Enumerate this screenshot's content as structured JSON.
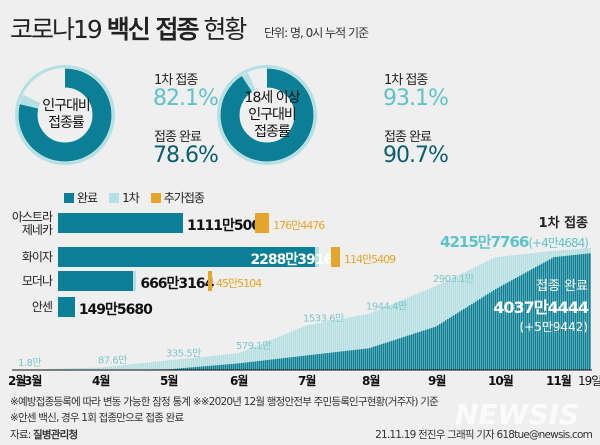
{
  "title": {
    "light": "코로나19 ",
    "bold": "백신 접종",
    "tail": " 현황"
  },
  "unit": "단위: 명, 0시 누적 기준",
  "donuts": [
    {
      "center": [
        "인구대비",
        "접종률"
      ],
      "first_label": "1차 접종",
      "first_pct": "82.1%",
      "full_label": "접종 완료",
      "full_pct": "78.6%",
      "first_value": 82.1,
      "full_value": 78.6
    },
    {
      "center": [
        "18세 이상",
        "인구대비",
        "접종률"
      ],
      "first_label": "1차 접종",
      "first_pct": "93.1%",
      "full_label": "접종 완료",
      "full_pct": "90.7%",
      "first_value": 93.1,
      "full_value": 90.7
    }
  ],
  "legend": [
    {
      "label": "완료",
      "color": "#0a7f96"
    },
    {
      "label": "1차",
      "color": "#b4e0e3"
    },
    {
      "label": "추가접종",
      "color": "#e5a52a"
    }
  ],
  "vaccines": [
    {
      "name": [
        "아스트라",
        "제네카"
      ],
      "complete": 1111.5006,
      "first_extra": 0,
      "complete_label": "1111만5006",
      "booster": 176.4476,
      "booster_label": "176만4476"
    },
    {
      "name": [
        "화이자"
      ],
      "complete": 2288.3916,
      "first_extra": 30,
      "complete_label": "2288만3916",
      "booster": 114.5409,
      "booster_label": "114만5409"
    },
    {
      "name": [
        "모더나"
      ],
      "complete": 666.3164,
      "first_extra": 30,
      "complete_label": "666만3164",
      "booster": 45.5104,
      "booster_label": "45만5104"
    },
    {
      "name": [
        "안센"
      ],
      "complete": 149.568,
      "first_extra": 0,
      "complete_label": "149만5680",
      "booster": 0,
      "booster_label": ""
    }
  ],
  "summary": {
    "first_label": "1차 접종",
    "first_total": "4215만7766",
    "first_delta": "(+4만4684)",
    "full_label": "접종 완료",
    "full_total": "4037만4444",
    "full_delta": "(+5만9442)"
  },
  "chart_data": {
    "type": "area",
    "unit": "만 명",
    "x_ticks": [
      "2월",
      "3월",
      "4월",
      "5월",
      "6월",
      "7월",
      "8월",
      "9월",
      "10월",
      "11월",
      "19일"
    ],
    "x": [
      "02-26",
      "03-01",
      "04-01",
      "05-01",
      "06-01",
      "07-01",
      "08-01",
      "09-01",
      "10-01",
      "11-01",
      "11-19"
    ],
    "series": [
      {
        "name": "1차",
        "values": [
          0,
          1.8,
          87.6,
          335.5,
          579.1,
          1533.6,
          1944.4,
          2903.1,
          3900,
          4120,
          4215.8
        ]
      },
      {
        "name": "완료",
        "values": [
          0,
          0,
          5,
          25,
          230,
          500,
          750,
          1500,
          2800,
          3900,
          4037.4
        ]
      }
    ],
    "annotations": [
      "1.8만",
      "87.6만",
      "335.5만",
      "579.1만",
      "1533.6만",
      "1944.4만",
      "2903.1만"
    ],
    "ylim": [
      0,
      4300
    ]
  },
  "notes": [
    "※예방접종등록에 따라 변동 가능한 잠정 통계 ※※2020년 12월 행정안전부 주민등록인구현황(거주자) 기준",
    "※안센 백신, 경우 1회 접종만으로 접종 완료"
  ],
  "source_label": "자료: ",
  "source": "질병관리청",
  "credit": "21.11.19 전진우 그래픽 기자 618tue@newsis.com",
  "watermark": "NEWSIS"
}
